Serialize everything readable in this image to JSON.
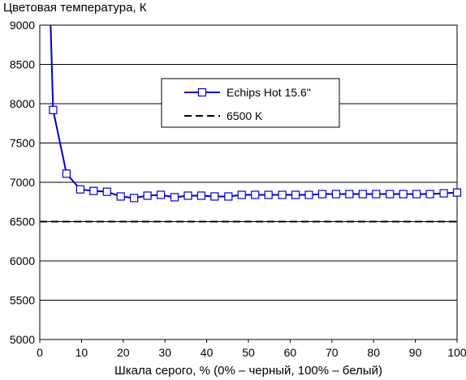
{
  "chart_data": {
    "type": "line",
    "title": "",
    "ylabel": "Цветовая температура, К",
    "xlabel": "Шкала серого, % (0% – черный, 100% – белый)",
    "xlim": [
      0,
      100
    ],
    "ylim": [
      5000,
      9000
    ],
    "x_ticks": [
      "0",
      "10",
      "20",
      "30",
      "40",
      "50",
      "60",
      "70",
      "80",
      "90",
      "100"
    ],
    "y_ticks": [
      "5000",
      "5500",
      "6000",
      "6500",
      "7000",
      "7500",
      "8000",
      "8500",
      "9000"
    ],
    "grid": "horizontal",
    "legend_position": "top-right",
    "series": [
      {
        "name": "Echips Hot 15.6\"",
        "color": "#0000cc",
        "marker": "square",
        "x": [
          3.2,
          6.4,
          9.7,
          12.9,
          16.1,
          19.4,
          22.6,
          25.8,
          29.0,
          32.3,
          35.5,
          38.7,
          41.9,
          45.2,
          48.4,
          51.6,
          54.8,
          58.1,
          61.3,
          64.5,
          67.7,
          71.0,
          74.2,
          77.4,
          80.6,
          83.9,
          87.1,
          90.3,
          93.5,
          96.8,
          100.0
        ],
        "values": [
          7920,
          7110,
          6910,
          6890,
          6880,
          6820,
          6800,
          6830,
          6840,
          6810,
          6830,
          6830,
          6820,
          6820,
          6840,
          6840,
          6840,
          6840,
          6840,
          6840,
          6850,
          6850,
          6850,
          6850,
          6850,
          6850,
          6850,
          6850,
          6850,
          6860,
          6870
        ],
        "offscale_start": {
          "x": 2.6,
          "y": 9000
        }
      },
      {
        "name": "6500 K",
        "color": "#000000",
        "style": "dashed",
        "x": [
          0,
          100
        ],
        "values": [
          6500,
          6500
        ]
      }
    ]
  }
}
